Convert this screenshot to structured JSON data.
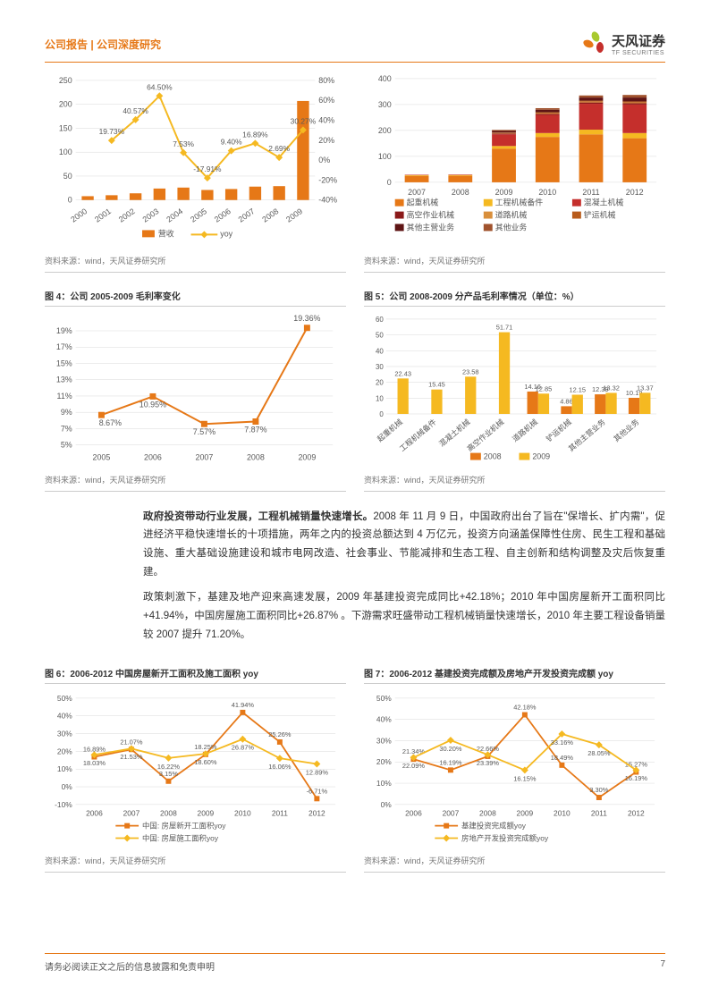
{
  "header": {
    "left": "公司报告 | 公司深度研究",
    "brand_cn": "天风证券",
    "brand_en": "TF SECURITIES"
  },
  "footer": {
    "disclaimer": "请务必阅读正文之后的信息披露和免责申明",
    "page": "7"
  },
  "source_text": "资料来源：wind，天风证券研究所",
  "colors": {
    "orange": "#e67817",
    "yellow": "#f5b921",
    "dark_red": "#8b1a1a",
    "red": "#c52f2c",
    "maroon": "#5e1414",
    "grid": "#d9d9d9",
    "axis": "#888",
    "text": "#595959"
  },
  "chart1": {
    "years": [
      "2000",
      "2001",
      "2002",
      "2003",
      "2004",
      "2005",
      "2006",
      "2007",
      "2008",
      "2009"
    ],
    "bars": [
      8,
      10,
      14,
      24,
      26,
      21,
      23,
      28,
      29,
      207
    ],
    "line_pct": [
      null,
      19.73,
      40.57,
      64.5,
      7.53,
      -17.91,
      9.4,
      16.89,
      2.69,
      30.27
    ],
    "labels": [
      "",
      "19.73%",
      "40.57%",
      "64.50%",
      "7.53%",
      "-17.91%",
      "9.40%",
      "16.89%",
      "2.69%",
      "30.27%"
    ],
    "y1_ticks": [
      0,
      50,
      100,
      150,
      200,
      250
    ],
    "y2_ticks": [
      -40,
      -20,
      0,
      20,
      40,
      60,
      80
    ],
    "legend": [
      "营收",
      "yoy"
    ]
  },
  "chart2": {
    "years": [
      "2007",
      "2008",
      "2009",
      "2010",
      "2011",
      "2012"
    ],
    "series": [
      {
        "name": "起重机械",
        "color": "#e67817",
        "v": [
          24,
          25,
          130,
          175,
          185,
          170
        ]
      },
      {
        "name": "工程机械备件",
        "color": "#f5b921",
        "v": [
          3,
          3,
          10,
          15,
          18,
          20
        ]
      },
      {
        "name": "混凝土机械",
        "color": "#c52f2c",
        "v": [
          2,
          2,
          45,
          70,
          100,
          110
        ]
      },
      {
        "name": "高空作业机械",
        "color": "#8b1a1a",
        "v": [
          0,
          0,
          3,
          4,
          5,
          5
        ]
      },
      {
        "name": "道路机械",
        "color": "#d98f3c",
        "v": [
          0,
          0,
          2,
          3,
          3,
          3
        ]
      },
      {
        "name": "铲运机械",
        "color": "#b85c1c",
        "v": [
          0,
          0,
          2,
          3,
          4,
          4
        ]
      },
      {
        "name": "其他主营业务",
        "color": "#5e1414",
        "v": [
          0,
          0,
          6,
          10,
          12,
          15
        ]
      },
      {
        "name": "其他业务",
        "color": "#a0522d",
        "v": [
          0,
          0,
          4,
          6,
          8,
          10
        ]
      }
    ],
    "y_ticks": [
      0,
      100,
      200,
      300,
      400
    ]
  },
  "fig4": {
    "title": "图 4：公司 2005-2009 毛利率变化",
    "years": [
      "2005",
      "2006",
      "2007",
      "2008",
      "2009"
    ],
    "vals": [
      8.67,
      10.95,
      7.57,
      7.87,
      19.36
    ],
    "labels": [
      "8.67%",
      "10.95%",
      "7.57%",
      "7.87%",
      "19.36%"
    ],
    "y_ticks": [
      5,
      7,
      9,
      11,
      13,
      15,
      17,
      19
    ],
    "y_tick_labels": [
      "5%",
      "7%",
      "9%",
      "11%",
      "13%",
      "15%",
      "17%",
      "19%"
    ]
  },
  "fig5": {
    "title": "图 5：公司 2008-2009 分产品毛利率情况（单位：%）",
    "cats": [
      "起重机械",
      "工程机械备件",
      "混凝土机械",
      "高空作业机械",
      "道路机械",
      "铲运机械",
      "其他主营业务",
      "其他业务"
    ],
    "s2008": [
      null,
      null,
      null,
      null,
      14.16,
      4.86,
      12.39,
      10.19
    ],
    "s2009": [
      22.43,
      15.45,
      23.58,
      51.71,
      12.85,
      12.15,
      13.32,
      13.37
    ],
    "y_ticks": [
      0,
      10,
      20,
      30,
      40,
      50,
      60
    ],
    "legend": [
      "2008",
      "2009"
    ]
  },
  "fig6": {
    "title": "图 6：2006-2012 中国房屋新开工面积及施工面积 yoy",
    "years": [
      "2006",
      "2007",
      "2008",
      "2009",
      "2010",
      "2011",
      "2012"
    ],
    "s1": [
      16.89,
      21.07,
      3.15,
      18.25,
      41.94,
      25.26,
      -6.71
    ],
    "s2": [
      18.03,
      21.53,
      16.22,
      18.6,
      26.87,
      16.06,
      12.89
    ],
    "l1": [
      "16.89%",
      "21.07%",
      "3.15%",
      "18.25%",
      "41.94%",
      "25.26%",
      "-6.71%"
    ],
    "l2": [
      "18.03%",
      "21.53%",
      "16.22%",
      "18.60%",
      "26.87%",
      "16.06%",
      "12.89%"
    ],
    "y_ticks": [
      -10,
      0,
      10,
      20,
      30,
      40,
      50
    ],
    "y_labels": [
      "-10%",
      "0%",
      "10%",
      "20%",
      "30%",
      "40%",
      "50%"
    ],
    "legend": [
      "中国: 房屋新开工面积yoy",
      "中国: 房屋施工面积yoy"
    ]
  },
  "fig7": {
    "title": "图 7：2006-2012 基建投资完成额及房地产开发投资完成额 yoy",
    "years": [
      "2006",
      "2007",
      "2008",
      "2009",
      "2010",
      "2011",
      "2012"
    ],
    "s1": [
      21.34,
      16.19,
      22.66,
      42.18,
      18.49,
      3.3,
      15.27
    ],
    "s2": [
      22.09,
      30.2,
      23.39,
      16.15,
      33.16,
      28.05,
      16.19
    ],
    "l1": [
      "21.34%",
      "16.19%",
      "22.66%",
      "42.18%",
      "18.49%",
      "3.30%",
      "15.27%"
    ],
    "l2": [
      "22.09%",
      "30.20%",
      "23.39%",
      "16.15%",
      "33.16%",
      "28.05%",
      "16.19%"
    ],
    "y_ticks": [
      0,
      10,
      20,
      30,
      40,
      50
    ],
    "y_labels": [
      "0%",
      "10%",
      "20%",
      "30%",
      "40%",
      "50%"
    ],
    "legend": [
      "基建投资完成额yoy",
      "房地产开发投资完成额yoy"
    ]
  },
  "body": {
    "p1_bold": "政府投资带动行业发展，工程机械销量快速增长。",
    "p1_rest": "2008 年 11 月 9 日，中国政府出台了旨在\"保增长、扩内需\"，促进经济平稳快速增长的十项措施，两年之内的投资总额达到 4 万亿元，投资方向涵盖保障性住房、民生工程和基础设施、重大基础设施建设和城市电网改造、社会事业、节能减排和生态工程、自主创新和结构调整及灾后恢复重建。",
    "p2": "政策刺激下，基建及地产迎来高速发展，2009 年基建投资完成同比+42.18%；2010 年中国房屋新开工面积同比+41.94%，中国房屋施工面积同比+26.87% 。下游需求旺盛带动工程机械销量快速增长，2010 年主要工程设备销量较 2007 提升 71.20%。"
  }
}
